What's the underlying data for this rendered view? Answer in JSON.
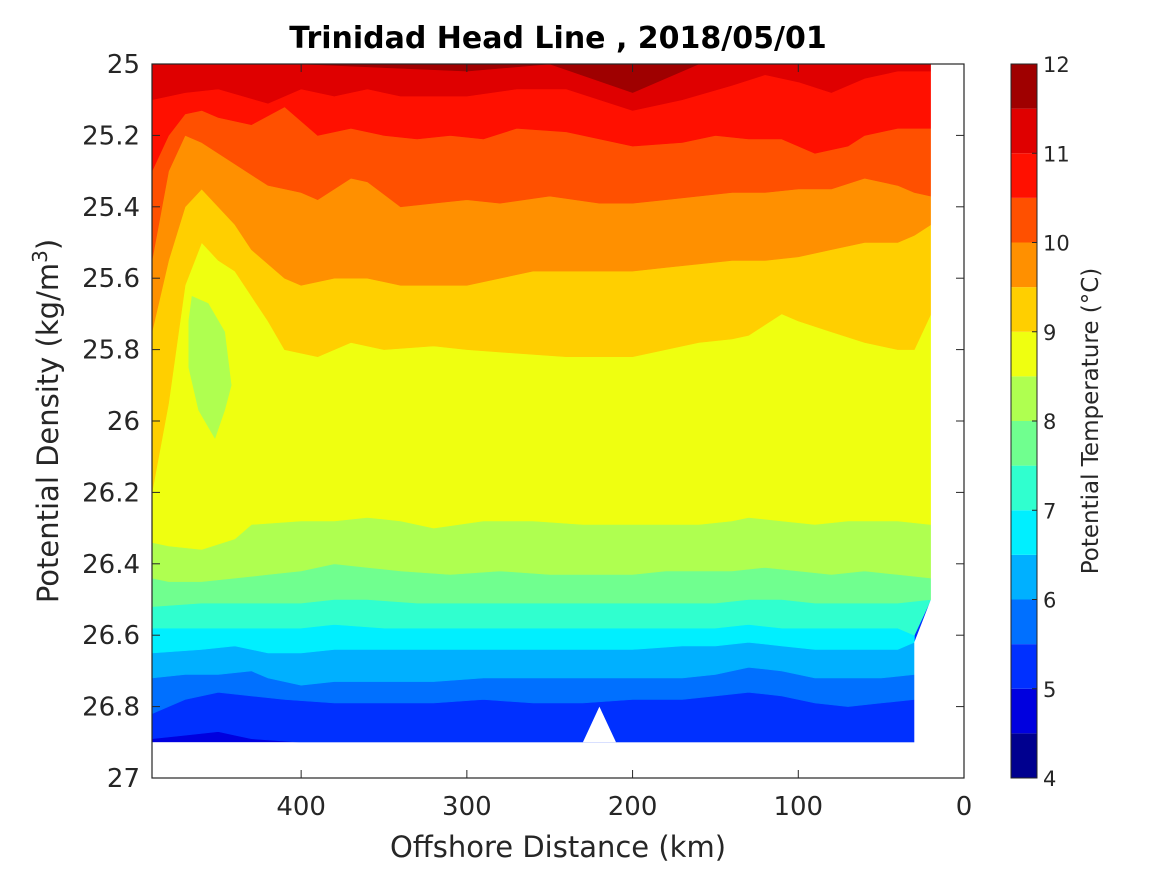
{
  "chart_data": {
    "type": "contour",
    "title": "Trinidad Head Line , 2018/05/01",
    "xlabel": "Offshore Distance (km)",
    "ylabel": "Potential Density (kg/m³)",
    "xlim": [
      490,
      0
    ],
    "ylim": [
      25,
      27
    ],
    "x_reversed": true,
    "y_reversed": true,
    "xticks": [
      400,
      300,
      200,
      100,
      0
    ],
    "yticks": [
      25,
      25.2,
      25.4,
      25.6,
      25.8,
      26,
      26.2,
      26.4,
      26.6,
      26.8,
      27
    ],
    "ytick_labels": [
      "25",
      "25.2",
      "25.4",
      "25.6",
      "25.8",
      "26",
      "26.2",
      "26.4",
      "26.6",
      "26.8",
      "27"
    ],
    "data_extent": {
      "x": [
        490,
        20
      ],
      "y": [
        25,
        26.9
      ]
    },
    "colorbar": {
      "label": "Potential Temperature (°C)",
      "range": [
        4,
        12
      ],
      "ticks": [
        4,
        5,
        6,
        7,
        8,
        9,
        10,
        11,
        12
      ],
      "levels": [
        4,
        4.5,
        5,
        5.5,
        6,
        6.5,
        7,
        7.5,
        8,
        8.5,
        9,
        9.5,
        10,
        10.5,
        11,
        11.5,
        12
      ],
      "colors": [
        "#00008f",
        "#0000df",
        "#0030ff",
        "#0070ff",
        "#00b0ff",
        "#00efff",
        "#30ffcf",
        "#70ff8f",
        "#afff50",
        "#efff10",
        "#ffcf00",
        "#ff9000",
        "#ff5000",
        "#ff1000",
        "#df0000",
        "#9f0000"
      ]
    },
    "isolines": [
      {
        "level": 11.5,
        "points": [
          [
            490,
            25.0
          ],
          [
            400,
            25.0
          ],
          [
            300,
            25.02
          ],
          [
            250,
            25.0
          ],
          [
            200,
            25.08
          ],
          [
            160,
            25.0
          ],
          [
            0,
            25.0
          ]
        ]
      },
      {
        "level": 11,
        "points": [
          [
            490,
            25.1
          ],
          [
            470,
            25.08
          ],
          [
            450,
            25.07
          ],
          [
            420,
            25.11
          ],
          [
            400,
            25.07
          ],
          [
            380,
            25.09
          ],
          [
            360,
            25.07
          ],
          [
            340,
            25.09
          ],
          [
            300,
            25.09
          ],
          [
            270,
            25.07
          ],
          [
            240,
            25.07
          ],
          [
            200,
            25.13
          ],
          [
            170,
            25.1
          ],
          [
            140,
            25.06
          ],
          [
            120,
            25.03
          ],
          [
            100,
            25.05
          ],
          [
            80,
            25.08
          ],
          [
            60,
            25.04
          ],
          [
            40,
            25.02
          ],
          [
            20,
            25.02
          ]
        ]
      },
      {
        "level": 10.5,
        "points": [
          [
            490,
            25.3
          ],
          [
            480,
            25.2
          ],
          [
            470,
            25.14
          ],
          [
            460,
            25.13
          ],
          [
            450,
            25.15
          ],
          [
            430,
            25.17
          ],
          [
            410,
            25.12
          ],
          [
            390,
            25.2
          ],
          [
            370,
            25.18
          ],
          [
            350,
            25.2
          ],
          [
            330,
            25.21
          ],
          [
            310,
            25.2
          ],
          [
            290,
            25.21
          ],
          [
            270,
            25.18
          ],
          [
            240,
            25.19
          ],
          [
            200,
            25.23
          ],
          [
            170,
            25.22
          ],
          [
            150,
            25.2
          ],
          [
            130,
            25.21
          ],
          [
            110,
            25.21
          ],
          [
            90,
            25.25
          ],
          [
            70,
            25.23
          ],
          [
            60,
            25.2
          ],
          [
            40,
            25.18
          ],
          [
            20,
            25.18
          ]
        ]
      },
      {
        "level": 10,
        "points": [
          [
            490,
            25.55
          ],
          [
            480,
            25.3
          ],
          [
            470,
            25.2
          ],
          [
            460,
            25.22
          ],
          [
            440,
            25.28
          ],
          [
            420,
            25.34
          ],
          [
            400,
            25.36
          ],
          [
            390,
            25.38
          ],
          [
            370,
            25.32
          ],
          [
            360,
            25.33
          ],
          [
            340,
            25.4
          ],
          [
            320,
            25.39
          ],
          [
            300,
            25.38
          ],
          [
            280,
            25.39
          ],
          [
            250,
            25.37
          ],
          [
            220,
            25.39
          ],
          [
            200,
            25.39
          ],
          [
            180,
            25.38
          ],
          [
            160,
            25.37
          ],
          [
            140,
            25.36
          ],
          [
            120,
            25.36
          ],
          [
            100,
            25.35
          ],
          [
            80,
            25.35
          ],
          [
            60,
            25.32
          ],
          [
            40,
            25.34
          ],
          [
            30,
            25.36
          ],
          [
            20,
            25.37
          ]
        ]
      },
      {
        "level": 9.5,
        "points": [
          [
            490,
            25.75
          ],
          [
            480,
            25.55
          ],
          [
            470,
            25.4
          ],
          [
            460,
            25.35
          ],
          [
            450,
            25.4
          ],
          [
            440,
            25.45
          ],
          [
            430,
            25.52
          ],
          [
            410,
            25.6
          ],
          [
            400,
            25.62
          ],
          [
            380,
            25.6
          ],
          [
            360,
            25.6
          ],
          [
            340,
            25.62
          ],
          [
            300,
            25.62
          ],
          [
            280,
            25.6
          ],
          [
            260,
            25.58
          ],
          [
            230,
            25.58
          ],
          [
            200,
            25.58
          ],
          [
            180,
            25.57
          ],
          [
            160,
            25.56
          ],
          [
            140,
            25.55
          ],
          [
            120,
            25.55
          ],
          [
            100,
            25.54
          ],
          [
            80,
            25.52
          ],
          [
            60,
            25.5
          ],
          [
            40,
            25.5
          ],
          [
            30,
            25.48
          ],
          [
            20,
            25.45
          ]
        ]
      },
      {
        "level": 9,
        "points": [
          [
            490,
            26.2
          ],
          [
            480,
            25.95
          ],
          [
            470,
            25.62
          ],
          [
            460,
            25.5
          ],
          [
            450,
            25.55
          ],
          [
            440,
            25.58
          ],
          [
            430,
            25.65
          ],
          [
            420,
            25.72
          ],
          [
            410,
            25.8
          ],
          [
            390,
            25.82
          ],
          [
            370,
            25.78
          ],
          [
            350,
            25.8
          ],
          [
            320,
            25.79
          ],
          [
            300,
            25.8
          ],
          [
            270,
            25.81
          ],
          [
            240,
            25.82
          ],
          [
            200,
            25.82
          ],
          [
            180,
            25.8
          ],
          [
            160,
            25.78
          ],
          [
            140,
            25.77
          ],
          [
            130,
            25.76
          ],
          [
            120,
            25.73
          ],
          [
            110,
            25.7
          ],
          [
            100,
            25.72
          ],
          [
            80,
            25.75
          ],
          [
            60,
            25.78
          ],
          [
            40,
            25.8
          ],
          [
            30,
            25.8
          ],
          [
            20,
            25.7
          ]
        ]
      },
      {
        "level": 8.5,
        "points": [
          [
            490,
            26.34
          ],
          [
            480,
            26.35
          ],
          [
            460,
            26.36
          ],
          [
            440,
            26.33
          ],
          [
            430,
            26.29
          ],
          [
            400,
            26.28
          ],
          [
            380,
            26.28
          ],
          [
            360,
            26.27
          ],
          [
            340,
            26.28
          ],
          [
            320,
            26.3
          ],
          [
            290,
            26.28
          ],
          [
            260,
            26.28
          ],
          [
            230,
            26.29
          ],
          [
            210,
            26.29
          ],
          [
            190,
            26.29
          ],
          [
            160,
            26.29
          ],
          [
            140,
            26.28
          ],
          [
            130,
            26.27
          ],
          [
            110,
            26.28
          ],
          [
            90,
            26.29
          ],
          [
            70,
            26.28
          ],
          [
            40,
            26.28
          ],
          [
            20,
            26.29
          ]
        ]
      },
      {
        "level": 8,
        "points": [
          [
            490,
            26.44
          ],
          [
            480,
            26.45
          ],
          [
            460,
            26.45
          ],
          [
            440,
            26.44
          ],
          [
            420,
            26.43
          ],
          [
            400,
            26.42
          ],
          [
            380,
            26.4
          ],
          [
            360,
            26.41
          ],
          [
            340,
            26.42
          ],
          [
            310,
            26.43
          ],
          [
            280,
            26.42
          ],
          [
            250,
            26.43
          ],
          [
            220,
            26.43
          ],
          [
            200,
            26.43
          ],
          [
            180,
            26.42
          ],
          [
            160,
            26.42
          ],
          [
            140,
            26.42
          ],
          [
            120,
            26.41
          ],
          [
            100,
            26.42
          ],
          [
            80,
            26.43
          ],
          [
            60,
            26.42
          ],
          [
            40,
            26.43
          ],
          [
            20,
            26.44
          ]
        ]
      },
      {
        "level": 7.5,
        "points": [
          [
            490,
            26.52
          ],
          [
            460,
            26.51
          ],
          [
            430,
            26.51
          ],
          [
            400,
            26.51
          ],
          [
            380,
            26.5
          ],
          [
            360,
            26.5
          ],
          [
            330,
            26.51
          ],
          [
            300,
            26.51
          ],
          [
            270,
            26.51
          ],
          [
            240,
            26.51
          ],
          [
            210,
            26.51
          ],
          [
            180,
            26.51
          ],
          [
            150,
            26.51
          ],
          [
            130,
            26.5
          ],
          [
            110,
            26.5
          ],
          [
            90,
            26.51
          ],
          [
            60,
            26.51
          ],
          [
            40,
            26.51
          ],
          [
            20,
            26.5
          ]
        ]
      },
      {
        "level": 7,
        "points": [
          [
            490,
            26.58
          ],
          [
            460,
            26.58
          ],
          [
            430,
            26.58
          ],
          [
            400,
            26.58
          ],
          [
            380,
            26.57
          ],
          [
            350,
            26.58
          ],
          [
            300,
            26.58
          ],
          [
            260,
            26.58
          ],
          [
            220,
            26.58
          ],
          [
            200,
            26.58
          ],
          [
            180,
            26.58
          ],
          [
            150,
            26.58
          ],
          [
            130,
            26.57
          ],
          [
            110,
            26.58
          ],
          [
            90,
            26.58
          ],
          [
            60,
            26.58
          ],
          [
            40,
            26.58
          ],
          [
            30,
            26.6
          ],
          [
            20,
            26.5
          ]
        ]
      },
      {
        "level": 6.5,
        "points": [
          [
            490,
            26.65
          ],
          [
            460,
            26.64
          ],
          [
            440,
            26.63
          ],
          [
            420,
            26.65
          ],
          [
            400,
            26.65
          ],
          [
            380,
            26.64
          ],
          [
            350,
            26.64
          ],
          [
            320,
            26.64
          ],
          [
            290,
            26.64
          ],
          [
            260,
            26.64
          ],
          [
            230,
            26.64
          ],
          [
            200,
            26.64
          ],
          [
            170,
            26.63
          ],
          [
            150,
            26.63
          ],
          [
            130,
            26.62
          ],
          [
            110,
            26.63
          ],
          [
            90,
            26.64
          ],
          [
            60,
            26.64
          ],
          [
            40,
            26.64
          ],
          [
            30,
            26.62
          ],
          [
            30,
            26.6
          ]
        ]
      },
      {
        "level": 6,
        "points": [
          [
            490,
            26.72
          ],
          [
            470,
            26.71
          ],
          [
            450,
            26.71
          ],
          [
            430,
            26.7
          ],
          [
            420,
            26.72
          ],
          [
            400,
            26.74
          ],
          [
            380,
            26.73
          ],
          [
            350,
            26.73
          ],
          [
            320,
            26.73
          ],
          [
            290,
            26.72
          ],
          [
            260,
            26.72
          ],
          [
            230,
            26.72
          ],
          [
            200,
            26.72
          ],
          [
            170,
            26.72
          ],
          [
            150,
            26.71
          ],
          [
            130,
            26.69
          ],
          [
            110,
            26.7
          ],
          [
            90,
            26.72
          ],
          [
            70,
            26.72
          ],
          [
            50,
            26.72
          ],
          [
            30,
            26.71
          ]
        ]
      },
      {
        "level": 5.5,
        "points": [
          [
            490,
            26.82
          ],
          [
            470,
            26.78
          ],
          [
            450,
            26.76
          ],
          [
            430,
            26.77
          ],
          [
            410,
            26.78
          ],
          [
            380,
            26.79
          ],
          [
            350,
            26.79
          ],
          [
            320,
            26.79
          ],
          [
            290,
            26.78
          ],
          [
            260,
            26.79
          ],
          [
            230,
            26.79
          ],
          [
            200,
            26.78
          ],
          [
            170,
            26.78
          ],
          [
            150,
            26.77
          ],
          [
            130,
            26.76
          ],
          [
            110,
            26.77
          ],
          [
            90,
            26.79
          ],
          [
            70,
            26.8
          ],
          [
            50,
            26.79
          ],
          [
            30,
            26.78
          ]
        ]
      },
      {
        "level": 5,
        "points": [
          [
            490,
            26.89
          ],
          [
            470,
            26.88
          ],
          [
            450,
            26.87
          ],
          [
            440,
            26.88
          ],
          [
            430,
            26.89
          ],
          [
            400,
            26.9
          ],
          [
            0,
            26.9
          ]
        ]
      }
    ]
  }
}
